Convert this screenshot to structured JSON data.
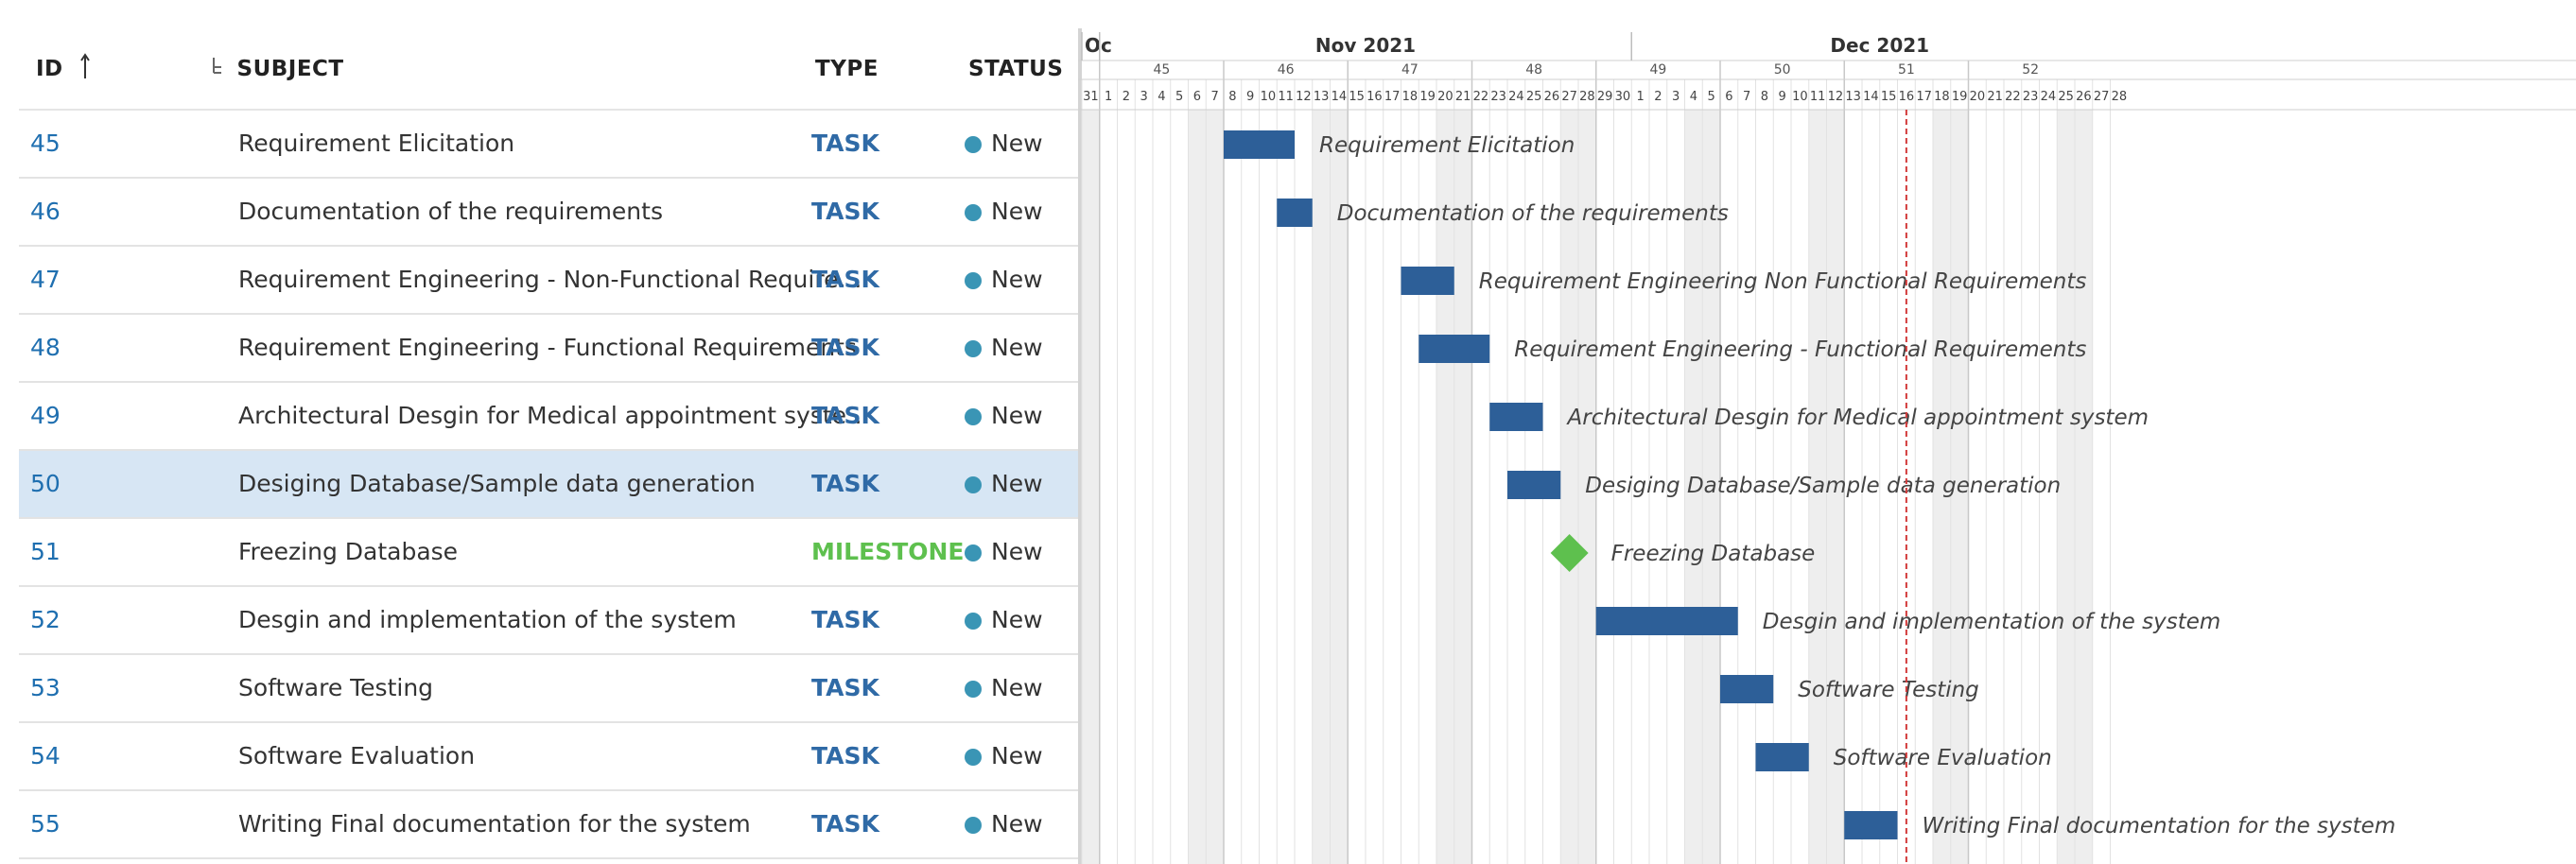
{
  "table": {
    "headers": {
      "id": "ID",
      "sort_icon": "arrow-up-icon",
      "hierarchy_icon": "hierarchy-icon",
      "subject": "SUBJECT",
      "type": "TYPE",
      "status": "STATUS"
    },
    "rows": [
      {
        "id": "45",
        "subject": "Requirement Elicitation",
        "type": "TASK",
        "status": "New",
        "selected": false
      },
      {
        "id": "46",
        "subject": "Documentation of the requirements",
        "type": "TASK",
        "status": "New",
        "selected": false
      },
      {
        "id": "47",
        "subject": "Requirement Engineering - Non-Functional Require…",
        "type": "TASK",
        "status": "New",
        "selected": false
      },
      {
        "id": "48",
        "subject": "Requirement Engineering - Functional Requirements",
        "type": "TASK",
        "status": "New",
        "selected": false
      },
      {
        "id": "49",
        "subject": "Architectural Desgin for Medical appointment syste…",
        "type": "TASK",
        "status": "New",
        "selected": false
      },
      {
        "id": "50",
        "subject": "Desiging Database/Sample data generation",
        "type": "TASK",
        "status": "New",
        "selected": true
      },
      {
        "id": "51",
        "subject": "Freezing Database",
        "type": "MILESTONE",
        "status": "New",
        "selected": false
      },
      {
        "id": "52",
        "subject": "Desgin and implementation of the system",
        "type": "TASK",
        "status": "New",
        "selected": false
      },
      {
        "id": "53",
        "subject": "Software Testing",
        "type": "TASK",
        "status": "New",
        "selected": false
      },
      {
        "id": "54",
        "subject": "Software Evaluation",
        "type": "TASK",
        "status": "New",
        "selected": false
      },
      {
        "id": "55",
        "subject": "Writing Final documentation for the system",
        "type": "TASK",
        "status": "New",
        "selected": false
      }
    ]
  },
  "gantt": {
    "months": [
      {
        "label": "Oc"
      },
      {
        "label": "Nov 2021"
      },
      {
        "label": "Dec 2021"
      }
    ],
    "weeks": [
      "45",
      "46",
      "47",
      "48",
      "49",
      "50",
      "51",
      "52"
    ],
    "days": [
      "31",
      "1",
      "2",
      "3",
      "4",
      "5",
      "6",
      "7",
      "8",
      "9",
      "10",
      "11",
      "12",
      "13",
      "14",
      "15",
      "16",
      "17",
      "18",
      "19",
      "20",
      "21",
      "22",
      "23",
      "24",
      "25",
      "26",
      "27",
      "28",
      "29",
      "30",
      "1",
      "2",
      "3",
      "4",
      "5",
      "6",
      "7",
      "8",
      "9",
      "10",
      "11",
      "12",
      "13",
      "14",
      "15",
      "16",
      "17",
      "18",
      "19",
      "20",
      "21",
      "22",
      "23",
      "24",
      "25",
      "26",
      "27",
      "28"
    ],
    "today_index": 46,
    "bars": [
      {
        "label": "Requirement Elicitation",
        "start": 8,
        "end": 11,
        "kind": "task"
      },
      {
        "label": "Documentation of the requirements",
        "start": 11,
        "end": 12,
        "kind": "task"
      },
      {
        "label": "Requirement Engineering   Non Functional Requirements",
        "start": 18,
        "end": 20,
        "kind": "task"
      },
      {
        "label": "Requirement Engineering - Functional Requirements",
        "start": 19,
        "end": 22,
        "kind": "task"
      },
      {
        "label": "Architectural Desgin for Medical appointment system",
        "start": 23,
        "end": 25,
        "kind": "task"
      },
      {
        "label": "Desiging Database/Sample data generation",
        "start": 24,
        "end": 26,
        "kind": "task"
      },
      {
        "label": "Freezing Database",
        "start": 27,
        "end": 27,
        "kind": "milestone"
      },
      {
        "label": "Desgin and implementation of the system",
        "start": 29,
        "end": 36,
        "kind": "task"
      },
      {
        "label": "Software Testing",
        "start": 36,
        "end": 38,
        "kind": "task"
      },
      {
        "label": "Software Evaluation",
        "start": 38,
        "end": 40,
        "kind": "task"
      },
      {
        "label": "Writing Final documentation for the system",
        "start": 43,
        "end": 45,
        "kind": "task"
      }
    ],
    "colors": {
      "bar": "#2d5f98",
      "milestone": "#5ec04e",
      "today": "#d23a3a",
      "weekend": "#eeeeee"
    }
  }
}
